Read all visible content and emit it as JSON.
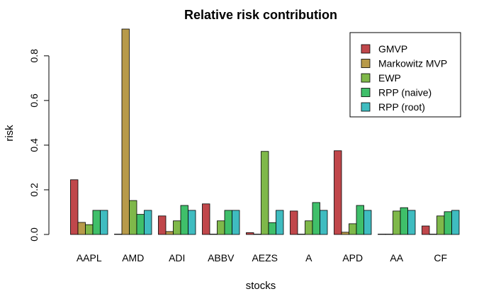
{
  "chart_data": {
    "type": "bar",
    "title": "Relative risk contribution",
    "xlabel": "stocks",
    "ylabel": "risk",
    "ylim": [
      0,
      0.92
    ],
    "yticks": [
      "0.0",
      "0.2",
      "0.4",
      "0.6",
      "0.8"
    ],
    "ytick_values": [
      0,
      0.2,
      0.4,
      0.6,
      0.8
    ],
    "categories": [
      "AAPL",
      "AMD",
      "ADI",
      "ABBV",
      "AEZS",
      "A",
      "APD",
      "AA",
      "CF"
    ],
    "series": [
      {
        "name": "GMVP",
        "color": "#c0474b",
        "values": [
          0.245,
          0,
          0.083,
          0.137,
          0.008,
          0.105,
          0.375,
          0,
          0.038
        ]
      },
      {
        "name": "Markowitz MVP",
        "color": "#b79a4a",
        "values": [
          0.054,
          0.92,
          0.013,
          0,
          0,
          0,
          0.01,
          0,
          0
        ]
      },
      {
        "name": "EWP",
        "color": "#7fb84a",
        "values": [
          0.044,
          0.152,
          0.061,
          0.061,
          0.372,
          0.061,
          0.048,
          0.105,
          0.083
        ]
      },
      {
        "name": "RPP (naive)",
        "color": "#3fbf6a",
        "values": [
          0.108,
          0.09,
          0.13,
          0.108,
          0.053,
          0.143,
          0.13,
          0.12,
          0.102
        ]
      },
      {
        "name": "RPP (root)",
        "color": "#3fbcc0",
        "values": [
          0.108,
          0.108,
          0.108,
          0.108,
          0.108,
          0.108,
          0.108,
          0.108,
          0.108
        ]
      }
    ],
    "legend_position": "top-right",
    "grid": false
  }
}
